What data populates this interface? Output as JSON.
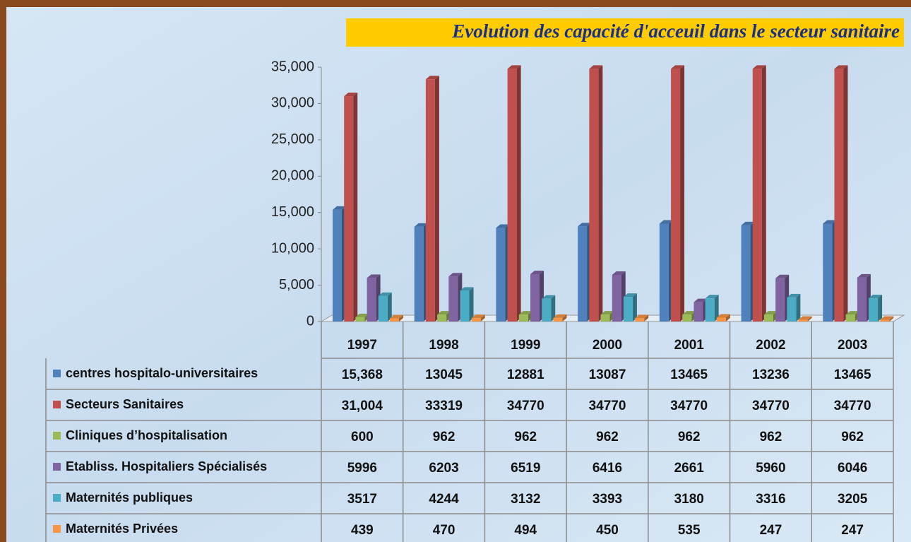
{
  "chart_data": {
    "type": "bar",
    "title": "Evolution des capacité d'acceuil dans le secteur sanitaire",
    "categories": [
      "1997",
      "1998",
      "1999",
      "2000",
      "2001",
      "2002",
      "2003"
    ],
    "series": [
      {
        "name": "centres hospitalo-universitaires",
        "color": "#4f81bd",
        "values": [
          15368,
          13045,
          12881,
          13087,
          13465,
          13236,
          13465
        ],
        "value_labels": [
          "15,368",
          "13045",
          "12881",
          "13087",
          "13465",
          "13236",
          "13465"
        ]
      },
      {
        "name": "Secteurs Sanitaires",
        "color": "#c0504d",
        "values": [
          31004,
          33319,
          34770,
          34770,
          34770,
          34770,
          34770
        ],
        "value_labels": [
          "31,004",
          "33319",
          "34770",
          "34770",
          "34770",
          "34770",
          "34770"
        ]
      },
      {
        "name": "Cliniques d’hospitalisation",
        "color": "#9bbb59",
        "values": [
          600,
          962,
          962,
          962,
          962,
          962,
          962
        ]
      },
      {
        "name": "Etabliss. Hospitaliers Spécialisés",
        "color": "#8064a2",
        "values": [
          5996,
          6203,
          6519,
          6416,
          2661,
          5960,
          6046
        ]
      },
      {
        "name": "Maternités publiques",
        "color": "#4bacc6",
        "values": [
          3517,
          4244,
          3132,
          3393,
          3180,
          3316,
          3205
        ]
      },
      {
        "name": "Maternités Privées",
        "color": "#f79646",
        "values": [
          439,
          470,
          494,
          450,
          535,
          247,
          247
        ]
      }
    ],
    "ylim": [
      0,
      35000
    ],
    "yticks": [
      0,
      {
        "value": 5000,
        "label": "5,000"
      },
      {
        "value": 10000,
        "label": "10,000"
      },
      {
        "value": 15000,
        "label": "15,000"
      },
      {
        "value": 20000,
        "label": "20,000"
      },
      {
        "value": 25000,
        "label": "25,000"
      },
      {
        "value": 30000,
        "label": "30,000"
      },
      {
        "value": 35000,
        "label": "35,000"
      }
    ],
    "grid": false
  }
}
